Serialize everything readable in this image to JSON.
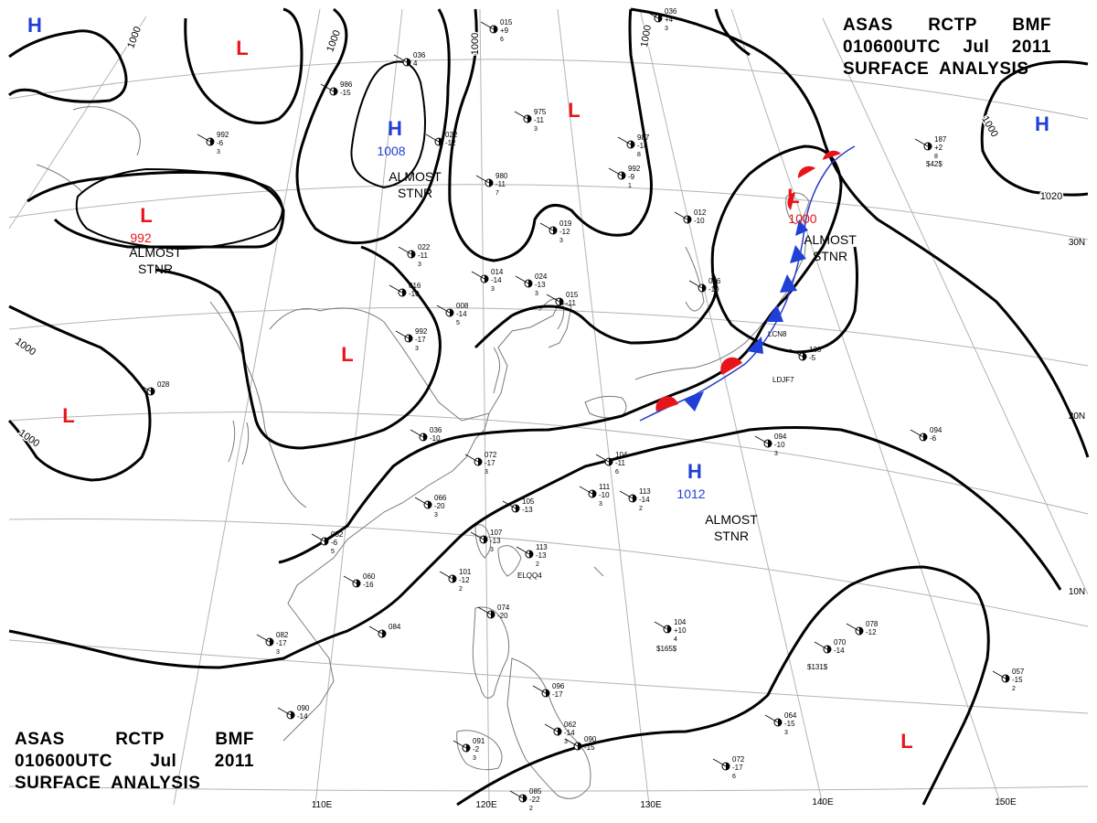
{
  "header_top": {
    "line1": [
      "ASAS",
      "RCTP",
      "BMF"
    ],
    "line2": [
      "010600UTC",
      "Jul",
      "2011"
    ],
    "line3": "SURFACE  ANALYSIS"
  },
  "header_bottom": {
    "line1": [
      "ASAS",
      "RCTP",
      "BMF"
    ],
    "line2": [
      "010600UTC",
      "Jul",
      "2011"
    ],
    "line3": "SURFACE  ANALYSIS"
  },
  "lon_labels": [
    "110E",
    "120E",
    "130E",
    "140E",
    "150E"
  ],
  "lat_labels": [
    "30N",
    "20N",
    "10N"
  ],
  "isobar_labels": [
    "1000",
    "1000",
    "1000",
    "1000",
    "1000",
    "1000",
    "1000",
    "1020",
    "1020"
  ],
  "centers": [
    {
      "type": "H",
      "color": "#1f3fd6"
    },
    {
      "type": "H",
      "color": "#1f3fd6",
      "value": "1008",
      "note": [
        "ALMOST",
        "STNR"
      ]
    },
    {
      "type": "H",
      "color": "#1f3fd6",
      "value": "1012",
      "note": [
        "ALMOST",
        "STNR"
      ]
    },
    {
      "type": "H",
      "color": "#1f3fd6"
    },
    {
      "type": "L",
      "color": "#e8141b"
    },
    {
      "type": "L",
      "color": "#e8141b"
    },
    {
      "type": "L",
      "color": "#e8141b",
      "value": "992",
      "note": [
        "ALMOST",
        "STNR"
      ]
    },
    {
      "type": "L",
      "color": "#e8141b"
    },
    {
      "type": "L",
      "color": "#e8141b"
    },
    {
      "type": "L",
      "color": "#e8141b",
      "value": "1000",
      "note": [
        "ALMOST",
        "STNR"
      ]
    },
    {
      "type": "L",
      "color": "#e8141b"
    }
  ],
  "stations": [
    {
      "p": "015",
      "t": "+9",
      "n": "6"
    },
    {
      "p": "036",
      "t": "+4",
      "n": "3"
    },
    {
      "p": "036",
      "t": "4",
      "n": ""
    },
    {
      "p": "986",
      "t": "-15",
      "n": ""
    },
    {
      "p": "975",
      "t": "-11",
      "n": "3"
    },
    {
      "p": "992",
      "t": "-6",
      "n": "3"
    },
    {
      "p": "987",
      "t": "-14",
      "n": "8"
    },
    {
      "p": "022",
      "t": "-12",
      "n": ""
    },
    {
      "p": "992",
      "t": "-9",
      "n": "1"
    },
    {
      "p": "980",
      "t": "-11",
      "n": "7"
    },
    {
      "p": "019",
      "t": "-12",
      "n": "3"
    },
    {
      "p": "022",
      "t": "-11",
      "n": "3"
    },
    {
      "p": "014",
      "t": "-14",
      "n": "3"
    },
    {
      "p": "024",
      "t": "-13",
      "n": "3"
    },
    {
      "p": "008",
      "t": "-14",
      "n": "5"
    },
    {
      "p": "015",
      "t": "-11",
      "n": ""
    },
    {
      "p": "016",
      "t": "-10",
      "n": ""
    },
    {
      "p": "992",
      "t": "-17",
      "n": "3"
    },
    {
      "p": "012",
      "t": "-10",
      "n": ""
    },
    {
      "p": "056",
      "t": "-10",
      "n": ""
    },
    {
      "p": "130",
      "t": "-5",
      "n": ""
    },
    {
      "p": "094",
      "t": "-6",
      "n": ""
    },
    {
      "p": "094",
      "t": "-10",
      "n": "3"
    },
    {
      "p": "036",
      "t": "-10",
      "n": ""
    },
    {
      "p": "072",
      "t": "-17",
      "n": "3"
    },
    {
      "p": "104",
      "t": "-11",
      "n": "6"
    },
    {
      "p": "111",
      "t": "-10",
      "n": "3"
    },
    {
      "p": "113",
      "t": "-14",
      "n": "2"
    },
    {
      "p": "066",
      "t": "-20",
      "n": "3"
    },
    {
      "p": "105",
      "t": "-13",
      "n": ""
    },
    {
      "p": "107",
      "t": "-13",
      "n": "3"
    },
    {
      "p": "113",
      "t": "-13",
      "n": "2"
    },
    {
      "p": "052",
      "t": "-6",
      "n": "5"
    },
    {
      "p": "060",
      "t": "-16",
      "n": ""
    },
    {
      "p": "101",
      "t": "-12",
      "n": "2"
    },
    {
      "p": "074",
      "t": "-20",
      "n": ""
    },
    {
      "p": "084",
      "t": "",
      "n": ""
    },
    {
      "p": "082",
      "t": "-17",
      "n": "3"
    },
    {
      "p": "090",
      "t": "-14",
      "n": ""
    },
    {
      "p": "091",
      "t": "-2",
      "n": "3"
    },
    {
      "p": "090",
      "t": "-15",
      "n": ""
    },
    {
      "p": "096",
      "t": "-17",
      "n": ""
    },
    {
      "p": "104",
      "t": "+10",
      "n": "4"
    },
    {
      "p": "070",
      "t": "-14",
      "n": ""
    },
    {
      "p": "078",
      "t": "-12",
      "n": ""
    },
    {
      "p": "064",
      "t": "-15",
      "n": "3"
    },
    {
      "p": "072",
      "t": "-17",
      "n": "6"
    },
    {
      "p": "057",
      "t": "-15",
      "n": "2"
    },
    {
      "p": "187",
      "t": "+2",
      "n": "8"
    },
    {
      "p": "085",
      "t": "-22",
      "n": "2"
    },
    {
      "p": "062",
      "t": "-14",
      "n": "3"
    },
    {
      "p": "028",
      "t": "",
      "n": ""
    }
  ],
  "station_tags": [
    "$165$",
    "$131$",
    "$42$",
    "ELQQ4",
    "LCN8",
    "LDJF7"
  ],
  "colors": {
    "isobar": "#000000",
    "grid": "#b4b4b4",
    "coast": "#7a7a7a",
    "high": "#1f3fd6",
    "low": "#e8141b",
    "warm_front": "#e8141b",
    "cold_front": "#1f3fd6"
  }
}
